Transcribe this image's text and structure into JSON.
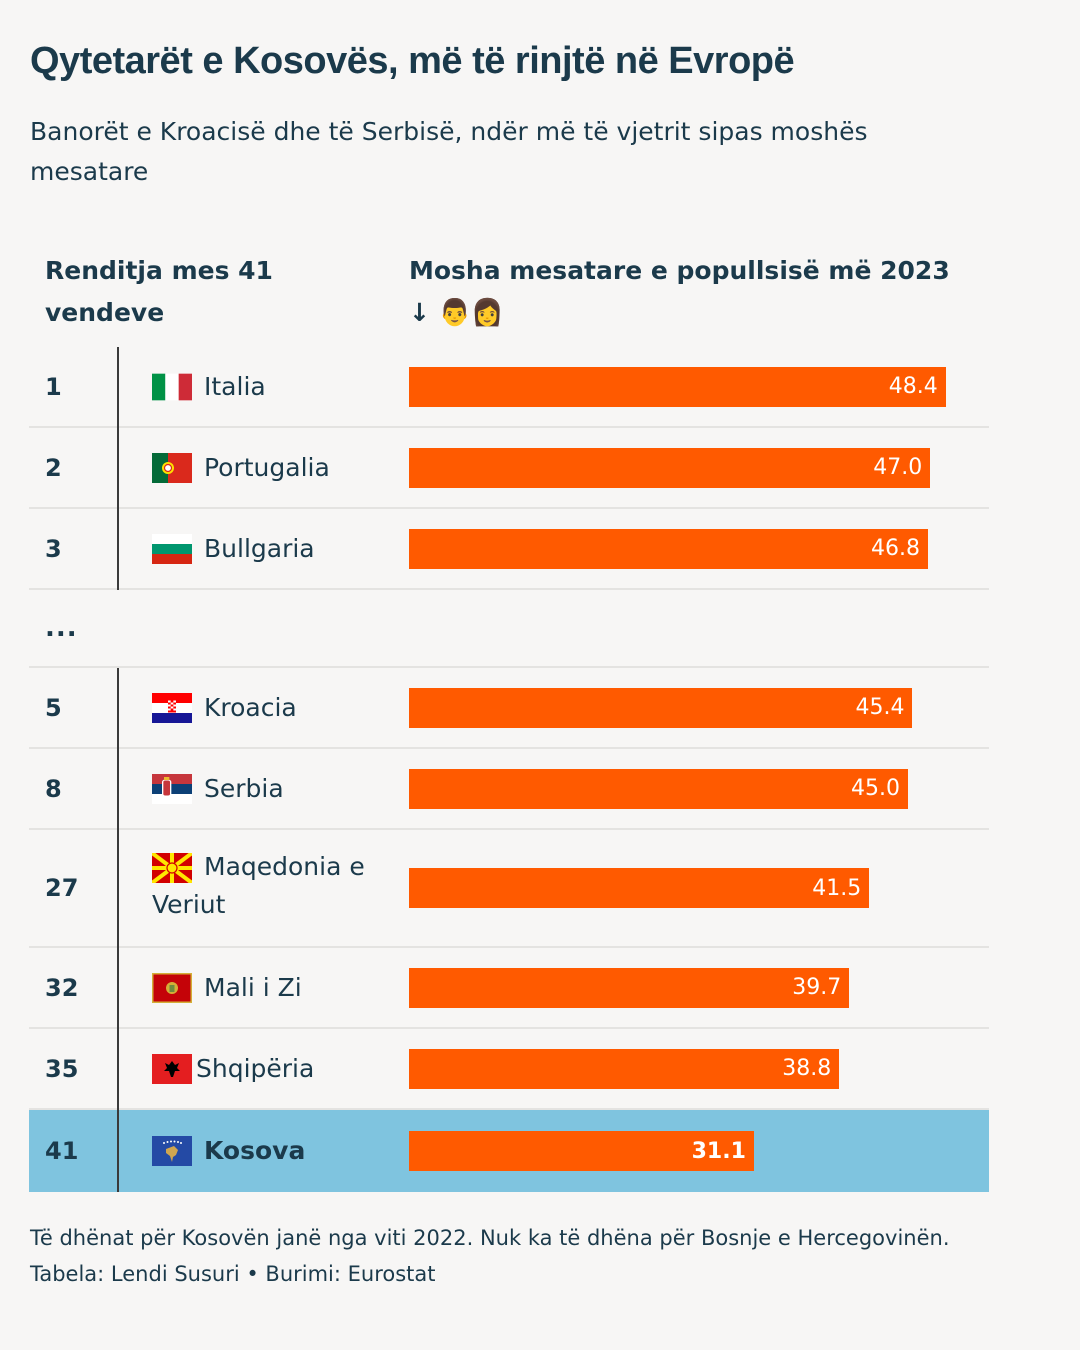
{
  "header": {
    "title": "Qytetarët e Kosovës, më të rinjtë në Evropë",
    "subtitle": "Banorët e Kroacisë dhe të Serbisë, ndër më të vjetrit sipas moshës mesatare"
  },
  "columns": {
    "rank_header": "Renditja mes 41 vendeve",
    "value_header": "Mosha mesatare e popullsisë më 2023",
    "sort_indicator": "↓",
    "emoji_man": "👨",
    "emoji_woman": "👩"
  },
  "ellipsis": "...",
  "chart_data": {
    "type": "bar",
    "orientation": "horizontal",
    "title": "Qytetarët e Kosovës, më të rinjtë në Evropë",
    "subtitle": "Banorët e Kroacisë dhe të Serbisë, ndër më të vjetrit sipas moshës mesatare",
    "xlabel": "Mosha mesatare e popullsisë më 2023",
    "ylabel": "Renditja mes 41 vendeve",
    "xlim": [
      0,
      52.3
    ],
    "categories": [
      "Italia",
      "Portugalia",
      "Bullgaria",
      "Kroacia",
      "Serbia",
      "Maqedonia e Veriut",
      "Mali i Zi",
      "Shqipëria",
      "Kosova"
    ],
    "ranks": [
      1,
      2,
      3,
      5,
      8,
      27,
      32,
      35,
      41
    ],
    "values": [
      48.4,
      47.0,
      46.8,
      45.4,
      45.0,
      41.5,
      39.7,
      38.8,
      31.1
    ],
    "value_labels": [
      "48.4",
      "47.0",
      "46.8",
      "45.4",
      "45.0",
      "41.5",
      "39.7",
      "38.8",
      "31.1"
    ],
    "highlight": "Kosova",
    "bar_color": "#ff5a00",
    "highlight_row_color": "#7fc4df",
    "gap_after_index": 2
  },
  "rows": [
    {
      "rank": "1",
      "country": "Italia",
      "flag": "it",
      "value": "48.4"
    },
    {
      "rank": "2",
      "country": "Portugalia",
      "flag": "pt",
      "value": "47.0"
    },
    {
      "rank": "3",
      "country": "Bullgaria",
      "flag": "bg",
      "value": "46.8"
    },
    {
      "rank": "5",
      "country": "Kroacia",
      "flag": "hr",
      "value": "45.4"
    },
    {
      "rank": "8",
      "country": "Serbia",
      "flag": "rs",
      "value": "45.0"
    },
    {
      "rank": "27",
      "country": "Maqedonia e Veriut",
      "flag": "mk",
      "value": "41.5"
    },
    {
      "rank": "32",
      "country": "Mali i Zi",
      "flag": "me",
      "value": "39.7"
    },
    {
      "rank": "35",
      "country": "Shqipëria",
      "flag": "al",
      "value": "38.8"
    },
    {
      "rank": "41",
      "country": "Kosova",
      "flag": "xk",
      "value": "31.1"
    }
  ],
  "footer": {
    "note": "Të dhënat për Kosovën janë nga viti 2022. Nuk ka të dhëna për Bosnje e Hercegovinën.",
    "credit": "Tabela: Lendi Susuri • Burimi: Eurostat"
  }
}
